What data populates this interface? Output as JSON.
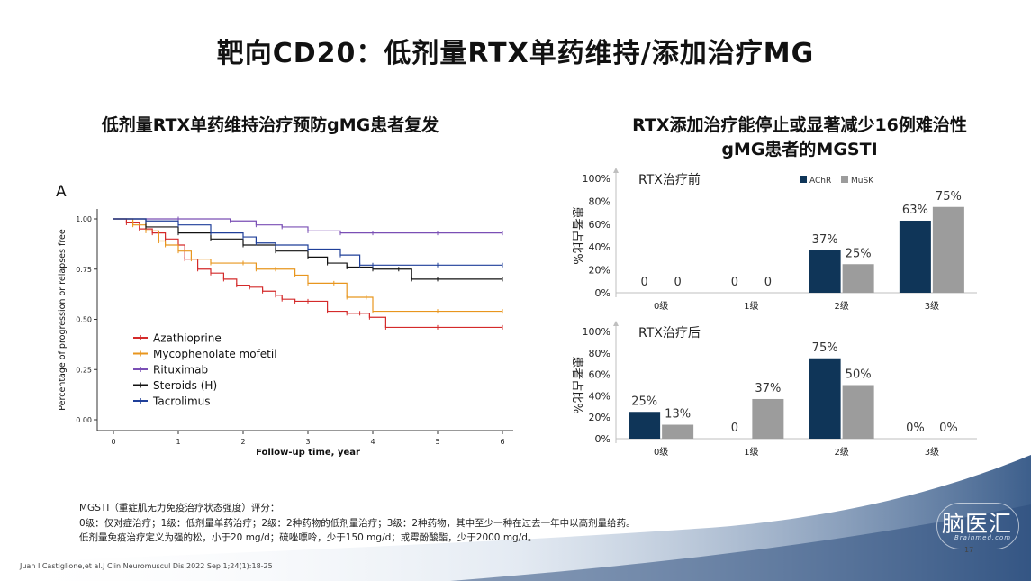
{
  "slide": {
    "title": "靶向CD20：低剂量RTX单药维持/添加治疗MG",
    "left_subtitle": "低剂量RTX单药维持治疗预防gMG患者复发",
    "right_subtitle_line1": "RTX添加治疗能停止或显著减少16例难治性",
    "right_subtitle_line2": "gMG患者的MGSTI",
    "panel_letter": "A",
    "footer_line1": "MGSTI（重症肌无力免疫治疗状态强度）评分：",
    "footer_line2": "0级：仅对症治疗；1级：低剂量单药治疗；2级：2种药物的低剂量治疗；3级：2种药物，其中至少一种在过去一年中以高剂量给药。",
    "footer_line3": "低剂量免疫治疗定义为强的松，小于20 mg/d；硫唑嘌呤，少于150 mg/d；或霉酚酸酯，少于2000 mg/d。",
    "reference": "Juan I Castiglione,et al.J Clin Neuromuscul Dis.2022 Sep 1;24(1):18-25",
    "page_number": "17",
    "logo_text": "脑医汇",
    "logo_subtext": "Brainmed.com"
  },
  "chart_data": [
    {
      "type": "line",
      "subtype": "kaplan-meier",
      "xlabel": "Follow-up time, year",
      "ylabel": "Percentage of progression or relapses free",
      "xlim": [
        0,
        6
      ],
      "ylim": [
        0,
        1
      ],
      "x_ticks": [
        "0",
        "1",
        "2",
        "3",
        "4",
        "5",
        "6"
      ],
      "y_ticks": [
        "0.00",
        "0.25",
        "0.50",
        "0.75",
        "1.00"
      ],
      "legend_position": "bottom-left",
      "grid": false,
      "series": [
        {
          "name": "Azathioprine",
          "color": "#d42a2a",
          "x": [
            0,
            0.2,
            0.4,
            0.6,
            0.8,
            1.0,
            1.1,
            1.3,
            1.5,
            1.7,
            1.9,
            2.1,
            2.3,
            2.5,
            2.6,
            2.8,
            3.0,
            3.3,
            3.6,
            3.8,
            3.95,
            4.2,
            5.0,
            6.0
          ],
          "y": [
            1.0,
            0.98,
            0.95,
            0.93,
            0.9,
            0.87,
            0.8,
            0.75,
            0.73,
            0.7,
            0.67,
            0.66,
            0.64,
            0.62,
            0.6,
            0.59,
            0.59,
            0.54,
            0.53,
            0.53,
            0.51,
            0.46,
            0.46,
            0.46
          ]
        },
        {
          "name": "Mycophenolate mofetil",
          "color": "#e8961e",
          "x": [
            0,
            0.3,
            0.5,
            0.7,
            0.8,
            1.0,
            1.2,
            1.5,
            2.0,
            2.2,
            2.5,
            2.8,
            3.0,
            3.4,
            3.6,
            3.9,
            4.0,
            5.0,
            6.0
          ],
          "y": [
            1.0,
            0.97,
            0.94,
            0.89,
            0.87,
            0.84,
            0.8,
            0.78,
            0.78,
            0.75,
            0.75,
            0.72,
            0.68,
            0.68,
            0.61,
            0.61,
            0.54,
            0.54,
            0.54
          ]
        },
        {
          "name": "Rituximab",
          "color": "#7a4fb5",
          "x": [
            0,
            1.0,
            1.8,
            2.2,
            2.6,
            3.0,
            3.5,
            4.0,
            5.0,
            6.0
          ],
          "y": [
            1.0,
            1.0,
            0.99,
            0.97,
            0.96,
            0.94,
            0.93,
            0.93,
            0.93,
            0.93
          ]
        },
        {
          "name": "Steroids (H)",
          "color": "#111111",
          "x": [
            0,
            0.5,
            1.0,
            1.5,
            2.0,
            2.5,
            3.0,
            3.3,
            3.6,
            4.0,
            4.4,
            4.6,
            5.0,
            6.0
          ],
          "y": [
            1.0,
            0.96,
            0.93,
            0.9,
            0.87,
            0.84,
            0.81,
            0.78,
            0.76,
            0.75,
            0.75,
            0.7,
            0.7,
            0.7
          ]
        },
        {
          "name": "Tacrolimus",
          "color": "#1f3f99",
          "x": [
            0,
            0.5,
            1.0,
            1.5,
            2.0,
            2.2,
            2.5,
            3.0,
            3.5,
            3.8,
            4.0,
            5.0,
            6.0
          ],
          "y": [
            1.0,
            0.99,
            0.97,
            0.93,
            0.91,
            0.88,
            0.87,
            0.85,
            0.82,
            0.77,
            0.77,
            0.77,
            0.77
          ]
        }
      ]
    },
    {
      "type": "bar",
      "title": "RTX治疗前",
      "ylabel": "患者占比%",
      "ylim": [
        0,
        100
      ],
      "y_ticks": [
        "0%",
        "20%",
        "40%",
        "60%",
        "80%",
        "100%"
      ],
      "categories": [
        "0级",
        "1级",
        "2级",
        "3级"
      ],
      "legend_position": "top-right",
      "series": [
        {
          "name": "AChR",
          "color": "#0f3558",
          "values": [
            0,
            0,
            37,
            63
          ],
          "labels": [
            "0",
            "0",
            "37%",
            "63%"
          ]
        },
        {
          "name": "MuSK",
          "color": "#9c9c9c",
          "values": [
            0,
            0,
            25,
            75
          ],
          "labels": [
            "0",
            "0",
            "25%",
            "75%"
          ]
        }
      ]
    },
    {
      "type": "bar",
      "title": "RTX治疗后",
      "ylabel": "患者占比%",
      "ylim": [
        0,
        100
      ],
      "y_ticks": [
        "0%",
        "20%",
        "40%",
        "60%",
        "80%",
        "100%"
      ],
      "categories": [
        "0级",
        "1级",
        "2级",
        "3级"
      ],
      "series": [
        {
          "name": "AChR",
          "color": "#0f3558",
          "values": [
            25,
            0,
            75,
            0
          ],
          "labels": [
            "25%",
            "0",
            "75%",
            "0%"
          ]
        },
        {
          "name": "MuSK",
          "color": "#9c9c9c",
          "values": [
            13,
            37,
            50,
            0
          ],
          "labels": [
            "13%",
            "37%",
            "50%",
            "0%"
          ]
        }
      ]
    }
  ]
}
